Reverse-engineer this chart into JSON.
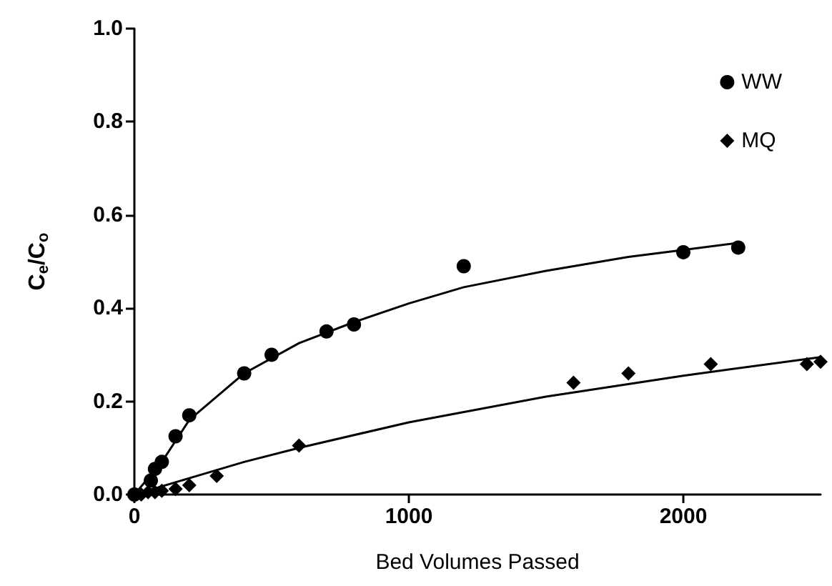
{
  "chart_data": {
    "type": "scatter",
    "xlabel": "Bed Volumes Passed",
    "ylabel": "C$_{e}$/C$_{o}$",
    "xlim": [
      0,
      2500
    ],
    "xticks": [
      0,
      1000,
      2000
    ],
    "ylim": [
      0,
      1.0
    ],
    "yticks": [
      {
        "value": 0,
        "label": "0.0"
      },
      {
        "value": 0.2,
        "label": "0.2"
      },
      {
        "value": 0.4,
        "label": "0.4"
      },
      {
        "value": 0.6,
        "label": "0.6"
      },
      {
        "value": 0.8,
        "label": "0.8"
      },
      {
        "value": 1.0,
        "label": "1.0"
      }
    ],
    "grid": false,
    "legend": "top right",
    "series": [
      {
        "name": "WW",
        "color": "#000000",
        "marker": "circle",
        "x": [
          0,
          60,
          75,
          100,
          150,
          200,
          400,
          500,
          700,
          800,
          1200,
          2000,
          2200
        ],
        "values": [
          0,
          0.03,
          0.055,
          0.07,
          0.125,
          0.17,
          0.26,
          0.3,
          0.35,
          0.365,
          0.49,
          0.52,
          0.53
        ]
      },
      {
        "name": "MQ",
        "color": "#000000",
        "marker": "diamond",
        "x": [
          25,
          50,
          75,
          100,
          150,
          200,
          300,
          600,
          1600,
          1800,
          2100,
          2450,
          2500
        ],
        "values": [
          0,
          0.005,
          0.005,
          0.008,
          0.012,
          0.02,
          0.04,
          0.105,
          0.24,
          0.26,
          0.28,
          0.28,
          0.285
        ]
      },
      {
        "type": "line",
        "color": "#000000",
        "marker": "none",
        "line_style": "solid",
        "x": [
          0,
          100,
          200,
          400,
          600,
          800,
          1000,
          1200,
          1500,
          1800,
          2000,
          2200
        ],
        "values": [
          0,
          0.07,
          0.16,
          0.26,
          0.325,
          0.37,
          0.41,
          0.445,
          0.48,
          0.51,
          0.525,
          0.54
        ]
      },
      {
        "type": "line",
        "color": "#000000",
        "marker": "none",
        "line_style": "solid",
        "x": [
          0,
          200,
          400,
          600,
          1000,
          1500,
          2000,
          2500
        ],
        "values": [
          0,
          0.035,
          0.07,
          0.1,
          0.155,
          0.21,
          0.255,
          0.295
        ]
      }
    ]
  }
}
